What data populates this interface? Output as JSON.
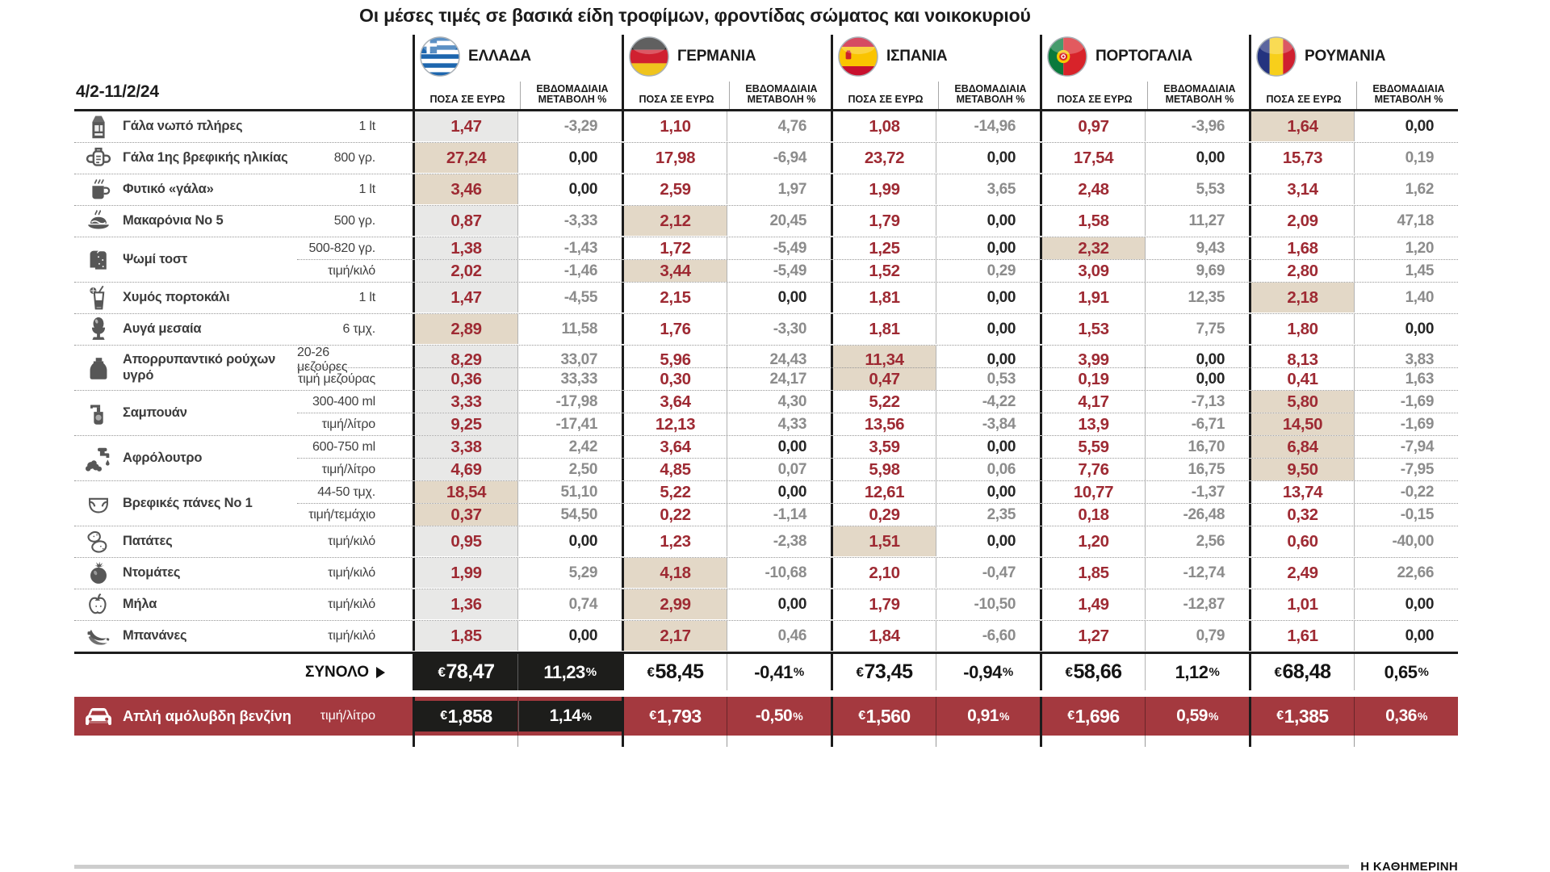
{
  "title": "Οι μέσες τιμές σε βασικά είδη τροφίμων, φροντίδας σώματος και νοικοκυριού",
  "period": "4/2-11/2/24",
  "columns": {
    "price": "ΠΟΣΑ ΣΕ ΕΥΡΩ",
    "change_line1": "ΕΒΔΟΜΑΔΙΑΙΑ",
    "change_line2": "ΜΕΤΑΒΟΛΗ %"
  },
  "symbols": {
    "currency": "€",
    "percent": "%"
  },
  "source": "Η ΚΑΘΗΜΕΡΙΝΗ",
  "colors": {
    "price_red": "#9e2a33",
    "band_red": "#a4393f",
    "highlight_beige": "#e3d8c7",
    "greece_gray": "#e8e8e7",
    "cell_black": "#1d1d1b",
    "change_gray": "#8c8c8c"
  },
  "chart_data": {
    "type": "table",
    "countries": [
      {
        "id": "greece",
        "name": "ΕΛΛΑΔΑ"
      },
      {
        "id": "germany",
        "name": "ΓΕΡΜΑΝΙΑ"
      },
      {
        "id": "spain",
        "name": "ΙΣΠΑΝΙΑ"
      },
      {
        "id": "portugal",
        "name": "ΠΟΡΤΟΓΑΛΙΑ"
      },
      {
        "id": "romania",
        "name": "ΡΟΥΜΑΝΙΑ"
      }
    ],
    "products": [
      {
        "icon": "milk-carton-icon",
        "name": "Γάλα νωπό πλήρες",
        "lines": [
          {
            "unit": "1 lt",
            "values": [
              {
                "price": "1,47",
                "change": "-3,29"
              },
              {
                "price": "1,10",
                "change": "4,76"
              },
              {
                "price": "1,08",
                "change": "-14,96"
              },
              {
                "price": "0,97",
                "change": "-3,96"
              },
              {
                "price": "1,64",
                "change": "0,00",
                "hl": true
              }
            ]
          }
        ]
      },
      {
        "icon": "baby-cup-icon",
        "name": "Γάλα 1ης βρεφικής ηλικίας",
        "lines": [
          {
            "unit": "800 γρ.",
            "values": [
              {
                "price": "27,24",
                "change": "0,00",
                "hl": true
              },
              {
                "price": "17,98",
                "change": "-6,94"
              },
              {
                "price": "23,72",
                "change": "0,00"
              },
              {
                "price": "17,54",
                "change": "0,00"
              },
              {
                "price": "15,73",
                "change": "0,19"
              }
            ]
          }
        ]
      },
      {
        "icon": "plant-milk-icon",
        "name": "Φυτικό «γάλα»",
        "lines": [
          {
            "unit": "1 lt",
            "values": [
              {
                "price": "3,46",
                "change": "0,00",
                "hl": true
              },
              {
                "price": "2,59",
                "change": "1,97"
              },
              {
                "price": "1,99",
                "change": "3,65"
              },
              {
                "price": "2,48",
                "change": "5,53"
              },
              {
                "price": "3,14",
                "change": "1,62"
              }
            ]
          }
        ]
      },
      {
        "icon": "pasta-icon",
        "name": "Μακαρόνια Νο 5",
        "lines": [
          {
            "unit": "500 γρ.",
            "values": [
              {
                "price": "0,87",
                "change": "-3,33"
              },
              {
                "price": "2,12",
                "change": "20,45",
                "hl": true
              },
              {
                "price": "1,79",
                "change": "0,00"
              },
              {
                "price": "1,58",
                "change": "11,27"
              },
              {
                "price": "2,09",
                "change": "47,18"
              }
            ]
          }
        ]
      },
      {
        "icon": "toast-icon",
        "name": "Ψωμί τοστ",
        "lines": [
          {
            "unit": "500-820 γρ.",
            "values": [
              {
                "price": "1,38",
                "change": "-1,43"
              },
              {
                "price": "1,72",
                "change": "-5,49"
              },
              {
                "price": "1,25",
                "change": "0,00"
              },
              {
                "price": "2,32",
                "change": "9,43",
                "hl": true
              },
              {
                "price": "1,68",
                "change": "1,20"
              }
            ]
          },
          {
            "unit": "τιμή/κιλό",
            "values": [
              {
                "price": "2,02",
                "change": "-1,46"
              },
              {
                "price": "3,44",
                "change": "-5,49",
                "hl": true
              },
              {
                "price": "1,52",
                "change": "0,29"
              },
              {
                "price": "3,09",
                "change": "9,69"
              },
              {
                "price": "2,80",
                "change": "1,45"
              }
            ]
          }
        ]
      },
      {
        "icon": "orange-juice-icon",
        "name": "Χυμός πορτοκάλι",
        "lines": [
          {
            "unit": "1 lt",
            "values": [
              {
                "price": "1,47",
                "change": "-4,55"
              },
              {
                "price": "2,15",
                "change": "0,00"
              },
              {
                "price": "1,81",
                "change": "0,00"
              },
              {
                "price": "1,91",
                "change": "12,35"
              },
              {
                "price": "2,18",
                "change": "1,40",
                "hl": true
              }
            ]
          }
        ]
      },
      {
        "icon": "egg-icon",
        "name": "Αυγά μεσαία",
        "lines": [
          {
            "unit": "6 τμχ.",
            "values": [
              {
                "price": "2,89",
                "change": "11,58",
                "hl": true
              },
              {
                "price": "1,76",
                "change": "-3,30"
              },
              {
                "price": "1,81",
                "change": "0,00"
              },
              {
                "price": "1,53",
                "change": "7,75"
              },
              {
                "price": "1,80",
                "change": "0,00"
              }
            ]
          }
        ]
      },
      {
        "icon": "detergent-icon",
        "name": "Απορρυπαντικό ρούχων υγρό",
        "lines": [
          {
            "unit": "20-26 μεζούρες",
            "values": [
              {
                "price": "8,29",
                "change": "33,07"
              },
              {
                "price": "5,96",
                "change": "24,43"
              },
              {
                "price": "11,34",
                "change": "0,00",
                "hl": true
              },
              {
                "price": "3,99",
                "change": "0,00"
              },
              {
                "price": "8,13",
                "change": "3,83"
              }
            ]
          },
          {
            "unit": "τιμή μεζούρας",
            "values": [
              {
                "price": "0,36",
                "change": "33,33"
              },
              {
                "price": "0,30",
                "change": "24,17"
              },
              {
                "price": "0,47",
                "change": "0,53",
                "hl": true
              },
              {
                "price": "0,19",
                "change": "0,00"
              },
              {
                "price": "0,41",
                "change": "1,63"
              }
            ]
          }
        ]
      },
      {
        "icon": "shampoo-icon",
        "name": "Σαμπουάν",
        "lines": [
          {
            "unit": "300-400 ml",
            "values": [
              {
                "price": "3,33",
                "change": "-17,98"
              },
              {
                "price": "3,64",
                "change": "4,30"
              },
              {
                "price": "5,22",
                "change": "-4,22"
              },
              {
                "price": "4,17",
                "change": "-7,13"
              },
              {
                "price": "5,80",
                "change": "-1,69",
                "hl": true
              }
            ]
          },
          {
            "unit": "τιμή/λίτρο",
            "values": [
              {
                "price": "9,25",
                "change": "-17,41"
              },
              {
                "price": "12,13",
                "change": "4,33"
              },
              {
                "price": "13,56",
                "change": "-3,84"
              },
              {
                "price": "13,9",
                "change": "-6,71"
              },
              {
                "price": "14,50",
                "change": "-1,69",
                "hl": true
              }
            ]
          }
        ]
      },
      {
        "icon": "bath-foam-icon",
        "name": "Αφρόλουτρο",
        "lines": [
          {
            "unit": "600-750 ml",
            "values": [
              {
                "price": "3,38",
                "change": "2,42"
              },
              {
                "price": "3,64",
                "change": "0,00"
              },
              {
                "price": "3,59",
                "change": "0,00"
              },
              {
                "price": "5,59",
                "change": "16,70"
              },
              {
                "price": "6,84",
                "change": "-7,94",
                "hl": true
              }
            ]
          },
          {
            "unit": "τιμή/λίτρο",
            "values": [
              {
                "price": "4,69",
                "change": "2,50"
              },
              {
                "price": "4,85",
                "change": "0,07"
              },
              {
                "price": "5,98",
                "change": "0,06"
              },
              {
                "price": "7,76",
                "change": "16,75"
              },
              {
                "price": "9,50",
                "change": "-7,95",
                "hl": true
              }
            ]
          }
        ]
      },
      {
        "icon": "diaper-icon",
        "name": "Βρεφικές πάνες Νο 1",
        "lines": [
          {
            "unit": "44-50 τμχ.",
            "values": [
              {
                "price": "18,54",
                "change": "51,10",
                "hl": true
              },
              {
                "price": "5,22",
                "change": "0,00"
              },
              {
                "price": "12,61",
                "change": "0,00"
              },
              {
                "price": "10,77",
                "change": "-1,37"
              },
              {
                "price": "13,74",
                "change": "-0,22"
              }
            ]
          },
          {
            "unit": "τιμή/τεμάχιο",
            "values": [
              {
                "price": "0,37",
                "change": "54,50",
                "hl": true
              },
              {
                "price": "0,22",
                "change": "-1,14"
              },
              {
                "price": "0,29",
                "change": "2,35"
              },
              {
                "price": "0,18",
                "change": "-26,48"
              },
              {
                "price": "0,32",
                "change": "-0,15"
              }
            ]
          }
        ]
      },
      {
        "icon": "potatoes-icon",
        "name": "Πατάτες",
        "lines": [
          {
            "unit": "τιμή/κιλό",
            "values": [
              {
                "price": "0,95",
                "change": "0,00"
              },
              {
                "price": "1,23",
                "change": "-2,38"
              },
              {
                "price": "1,51",
                "change": "0,00",
                "hl": true
              },
              {
                "price": "1,20",
                "change": "2,56"
              },
              {
                "price": "0,60",
                "change": "-40,00"
              }
            ]
          }
        ]
      },
      {
        "icon": "tomato-icon",
        "name": "Ντομάτες",
        "lines": [
          {
            "unit": "τιμή/κιλό",
            "values": [
              {
                "price": "1,99",
                "change": "5,29"
              },
              {
                "price": "4,18",
                "change": "-10,68",
                "hl": true
              },
              {
                "price": "2,10",
                "change": "-0,47"
              },
              {
                "price": "1,85",
                "change": "-12,74"
              },
              {
                "price": "2,49",
                "change": "22,66"
              }
            ]
          }
        ]
      },
      {
        "icon": "apple-icon",
        "name": "Μήλα",
        "lines": [
          {
            "unit": "τιμή/κιλό",
            "values": [
              {
                "price": "1,36",
                "change": "0,74"
              },
              {
                "price": "2,99",
                "change": "0,00",
                "hl": true
              },
              {
                "price": "1,79",
                "change": "-10,50"
              },
              {
                "price": "1,49",
                "change": "-12,87"
              },
              {
                "price": "1,01",
                "change": "0,00"
              }
            ]
          }
        ]
      },
      {
        "icon": "bananas-icon",
        "name": "Μπανάνες",
        "lines": [
          {
            "unit": "τιμή/κιλό",
            "values": [
              {
                "price": "1,85",
                "change": "0,00"
              },
              {
                "price": "2,17",
                "change": "0,46",
                "hl": true
              },
              {
                "price": "1,84",
                "change": "-6,60"
              },
              {
                "price": "1,27",
                "change": "0,79"
              },
              {
                "price": "1,61",
                "change": "0,00"
              }
            ]
          }
        ]
      }
    ],
    "total_row": {
      "label": "ΣΥΝΟΛΟ",
      "values": [
        {
          "price": "78,47",
          "change": "11,23"
        },
        {
          "price": "58,45",
          "change": "-0,41"
        },
        {
          "price": "73,45",
          "change": "-0,94"
        },
        {
          "price": "58,66",
          "change": "1,12"
        },
        {
          "price": "68,48",
          "change": "0,65"
        }
      ]
    },
    "fuel_row": {
      "icon": "car-icon",
      "name": "Απλή αμόλυβδη βενζίνη",
      "unit": "τιμή/λίτρο",
      "values": [
        {
          "price": "1,858",
          "change": "1,14"
        },
        {
          "price": "1,793",
          "change": "-0,50"
        },
        {
          "price": "1,560",
          "change": "0,91"
        },
        {
          "price": "1,696",
          "change": "0,59"
        },
        {
          "price": "1,385",
          "change": "0,36"
        }
      ]
    }
  }
}
